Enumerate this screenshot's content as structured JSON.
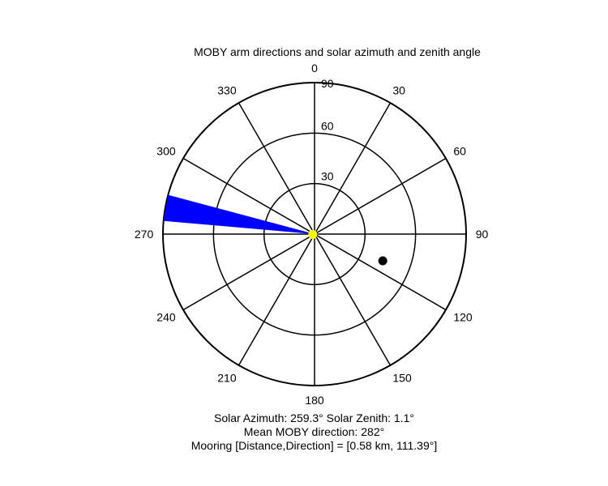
{
  "chart_data": {
    "type": "polar",
    "title": "MOBY arm directions and solar azimuth and zenith angle",
    "angle_ticks": [
      0,
      30,
      60,
      90,
      120,
      150,
      180,
      210,
      240,
      270,
      300,
      330
    ],
    "angle_tick_labels": [
      "0",
      "30",
      "60",
      "90",
      "120",
      "150",
      "180",
      "210",
      "240",
      "270",
      "300",
      "330"
    ],
    "radial_ticks": [
      30,
      60,
      90
    ],
    "radial_tick_labels": [
      "30",
      "60",
      "90"
    ],
    "rlim": [
      0,
      90
    ],
    "direction": "clockwise",
    "zero_location": "top",
    "arm_wedge": {
      "from_deg": 275,
      "to_deg": 285,
      "r_from": 0,
      "r_to": 90,
      "color": "#0000ff"
    },
    "sun_point": {
      "azimuth": 259.3,
      "zenith": 1.1,
      "color": "#ffff00"
    },
    "mooring_point": {
      "direction": 111.39,
      "zenith": 43.5,
      "color": "#000000"
    }
  },
  "info": {
    "line1": "Solar Azimuth: 259.3°   Solar Zenith: 1.1°",
    "line2": "Mean MOBY direction: 282°",
    "line3": "Mooring [Distance,Direction] = [0.58 km, 111.39°]"
  }
}
